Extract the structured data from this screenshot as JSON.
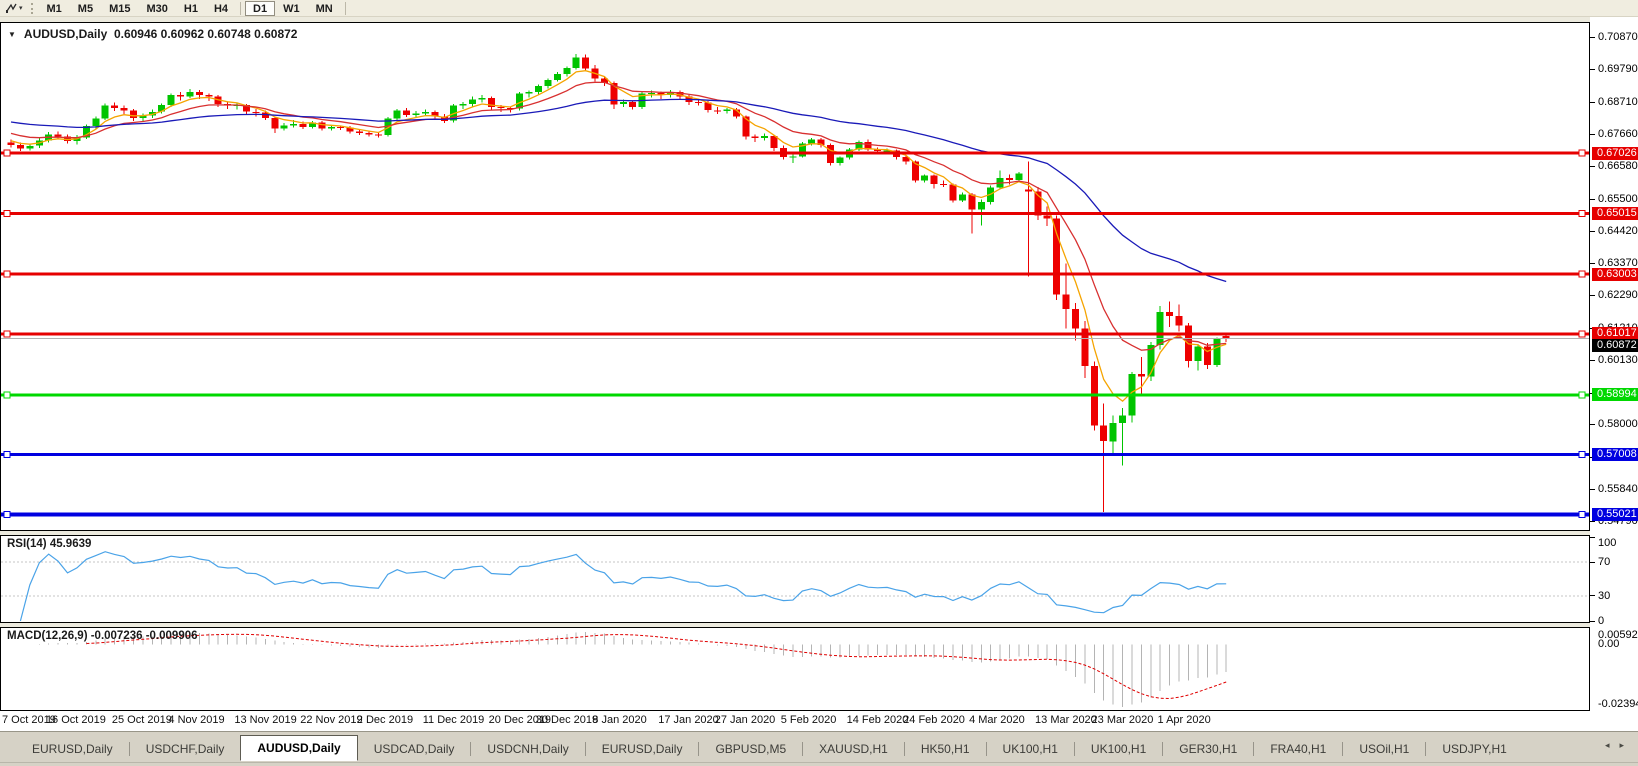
{
  "toolbar": {
    "timeframes": [
      "M1",
      "M5",
      "M15",
      "M30",
      "H1",
      "H4",
      "D1",
      "W1",
      "MN"
    ],
    "active_timeframe": "D1"
  },
  "icons": {
    "dropdown": "▼",
    "toolbar_caret": "▾",
    "tab_left": "◂",
    "tab_right": "▸"
  },
  "chart": {
    "title_symbol": "AUDUSD,Daily",
    "title_values": "0.60946 0.60962 0.60748 0.60872"
  },
  "chart_data": {
    "type": "candlestick",
    "symbol": "AUDUSD",
    "timeframe": "Daily",
    "current_bar": {
      "open": 0.60946,
      "high": 0.60962,
      "low": 0.60748,
      "close": 0.60872
    },
    "ylim": [
      0.545,
      0.7135
    ],
    "y_ticks": [
      "0.70870",
      "0.69790",
      "0.68710",
      "0.67660",
      "0.66580",
      "0.65500",
      "0.64420",
      "0.63370",
      "0.62290",
      "0.61210",
      "0.60130",
      "0.59050",
      "0.58000",
      "0.56920",
      "0.55840",
      "0.54790"
    ],
    "x_tick_labels": [
      "7 Oct 2019",
      "16 Oct 2019",
      "25 Oct 2019",
      "4 Nov 2019",
      "13 Nov 2019",
      "22 Nov 2019",
      "2 Dec 2019",
      "11 Dec 2019",
      "20 Dec 2019",
      "30 Dec 2019",
      "8 Jan 2020",
      "17 Jan 2020",
      "27 Jan 2020",
      "5 Feb 2020",
      "14 Feb 2020",
      "24 Feb 2020",
      "4 Mar 2020",
      "13 Mar 2020",
      "23 Mar 2020",
      "1 Apr 2020"
    ],
    "x_tick_indices": [
      0,
      7,
      14,
      20,
      27,
      34,
      40,
      47,
      54,
      59,
      65,
      72,
      78,
      85,
      92,
      98,
      105,
      112,
      118,
      125
    ],
    "colors": {
      "bull": "#00c400",
      "bear": "#ee0000",
      "current_line": "#b2b2b2",
      "current_label_bg": "#000000"
    },
    "levels": [
      {
        "price": 0.67026,
        "color": "#e60000",
        "width": 3
      },
      {
        "price": 0.65015,
        "color": "#e60000",
        "width": 3
      },
      {
        "price": 0.63003,
        "color": "#e60000",
        "width": 3
      },
      {
        "price": 0.61017,
        "color": "#e60000",
        "width": 3
      },
      {
        "price": 0.58994,
        "color": "#00d800",
        "width": 3
      },
      {
        "price": 0.57008,
        "color": "#0000e0",
        "width": 3
      },
      {
        "price": 0.55021,
        "color": "#0000e0",
        "width": 4
      }
    ],
    "current_price": 0.60872,
    "moving_averages": [
      {
        "period": 5,
        "color": "#f5a400",
        "seed": 0.675
      },
      {
        "period": 12,
        "color": "#d83030",
        "seed": 0.6775
      },
      {
        "period": 40,
        "color": "#1a1ab8",
        "seed": 0.681
      }
    ],
    "rsi": {
      "label": "RSI(14) 45.9639",
      "period": 14,
      "color": "#4aa3e8",
      "levels": [
        70,
        30
      ],
      "ticks": [
        "100",
        "70",
        "30",
        "0"
      ]
    },
    "macd": {
      "label": "MACD(12,26,9) -0.007236 -0.009906",
      "fast": 12,
      "slow": 26,
      "signal": 9,
      "bar_color": "#b4b4b4",
      "signal_color": "#e00000",
      "ylim": [
        -0.023944,
        0.005923
      ],
      "ticks_top": "0.005923",
      "tick_zero": "0.00",
      "tick_bottom": "-0.023944"
    },
    "ohlc": [
      [
        0.6738,
        0.6748,
        0.6722,
        0.673
      ],
      [
        0.673,
        0.6738,
        0.671,
        0.6718
      ],
      [
        0.6718,
        0.6733,
        0.6711,
        0.6727
      ],
      [
        0.6727,
        0.6752,
        0.672,
        0.6745
      ],
      [
        0.6745,
        0.6772,
        0.6738,
        0.6765
      ],
      [
        0.6765,
        0.6775,
        0.6748,
        0.6758
      ],
      [
        0.6758,
        0.6765,
        0.6735,
        0.6742
      ],
      [
        0.6742,
        0.6762,
        0.6732,
        0.6755
      ],
      [
        0.6755,
        0.6798,
        0.675,
        0.6792
      ],
      [
        0.6792,
        0.6825,
        0.6785,
        0.6818
      ],
      [
        0.6818,
        0.6868,
        0.6812,
        0.686
      ],
      [
        0.686,
        0.687,
        0.6842,
        0.6852
      ],
      [
        0.6852,
        0.686,
        0.6832,
        0.6845
      ],
      [
        0.6845,
        0.685,
        0.681,
        0.682
      ],
      [
        0.682,
        0.6835,
        0.6808,
        0.6827
      ],
      [
        0.6827,
        0.6848,
        0.682,
        0.684
      ],
      [
        0.684,
        0.6868,
        0.6835,
        0.6862
      ],
      [
        0.6862,
        0.69,
        0.6855,
        0.6895
      ],
      [
        0.6895,
        0.6905,
        0.6878,
        0.689
      ],
      [
        0.689,
        0.6915,
        0.6885,
        0.6905
      ],
      [
        0.6905,
        0.6912,
        0.6882,
        0.6895
      ],
      [
        0.6895,
        0.69,
        0.6875,
        0.689
      ],
      [
        0.689,
        0.6895,
        0.6855,
        0.6865
      ],
      [
        0.6865,
        0.6872,
        0.685,
        0.686
      ],
      [
        0.686,
        0.687,
        0.6848,
        0.6862
      ],
      [
        0.6862,
        0.6865,
        0.683,
        0.684
      ],
      [
        0.684,
        0.685,
        0.6825,
        0.6838
      ],
      [
        0.6838,
        0.6845,
        0.6812,
        0.682
      ],
      [
        0.682,
        0.6825,
        0.677,
        0.6785
      ],
      [
        0.6785,
        0.6802,
        0.6778,
        0.6795
      ],
      [
        0.6795,
        0.6812,
        0.6788,
        0.68
      ],
      [
        0.68,
        0.6808,
        0.6782,
        0.679
      ],
      [
        0.679,
        0.681,
        0.6785,
        0.6805
      ],
      [
        0.6805,
        0.681,
        0.6778,
        0.6785
      ],
      [
        0.6785,
        0.6795,
        0.6778,
        0.679
      ],
      [
        0.679,
        0.6795,
        0.678,
        0.6788
      ],
      [
        0.6788,
        0.6792,
        0.6768,
        0.6775
      ],
      [
        0.6775,
        0.6782,
        0.6762,
        0.677
      ],
      [
        0.677,
        0.6778,
        0.6758,
        0.6765
      ],
      [
        0.6765,
        0.6772,
        0.6755,
        0.6762
      ],
      [
        0.6762,
        0.6822,
        0.6758,
        0.6818
      ],
      [
        0.6818,
        0.685,
        0.6812,
        0.6845
      ],
      [
        0.6845,
        0.6852,
        0.6822,
        0.683
      ],
      [
        0.683,
        0.6842,
        0.6822,
        0.6835
      ],
      [
        0.6835,
        0.6848,
        0.6828,
        0.684
      ],
      [
        0.684,
        0.6845,
        0.6818,
        0.6825
      ],
      [
        0.6825,
        0.6832,
        0.6802,
        0.681
      ],
      [
        0.681,
        0.6865,
        0.6805,
        0.686
      ],
      [
        0.686,
        0.6872,
        0.685,
        0.6865
      ],
      [
        0.6865,
        0.689,
        0.6858,
        0.688
      ],
      [
        0.688,
        0.6895,
        0.687,
        0.6885
      ],
      [
        0.6885,
        0.689,
        0.6848,
        0.6855
      ],
      [
        0.6855,
        0.6862,
        0.684,
        0.6852
      ],
      [
        0.6852,
        0.6858,
        0.6838,
        0.685
      ],
      [
        0.685,
        0.6905,
        0.6845,
        0.69
      ],
      [
        0.69,
        0.691,
        0.6888,
        0.6905
      ],
      [
        0.6905,
        0.693,
        0.6898,
        0.6925
      ],
      [
        0.6925,
        0.695,
        0.6918,
        0.6945
      ],
      [
        0.6945,
        0.6972,
        0.694,
        0.6965
      ],
      [
        0.6965,
        0.699,
        0.6958,
        0.6985
      ],
      [
        0.6985,
        0.7032,
        0.698,
        0.7021
      ],
      [
        0.7021,
        0.703,
        0.6975,
        0.6984
      ],
      [
        0.6984,
        0.6995,
        0.694,
        0.695
      ],
      [
        0.695,
        0.6958,
        0.6925,
        0.6935
      ],
      [
        0.6935,
        0.694,
        0.685,
        0.6865
      ],
      [
        0.6865,
        0.688,
        0.6855,
        0.6872
      ],
      [
        0.6872,
        0.6878,
        0.6848,
        0.6855
      ],
      [
        0.6855,
        0.6905,
        0.685,
        0.69
      ],
      [
        0.69,
        0.691,
        0.6888,
        0.6902
      ],
      [
        0.6902,
        0.6908,
        0.6882,
        0.6895
      ],
      [
        0.6895,
        0.6912,
        0.6888,
        0.6905
      ],
      [
        0.6905,
        0.691,
        0.6882,
        0.689
      ],
      [
        0.689,
        0.6895,
        0.6862,
        0.6872
      ],
      [
        0.6872,
        0.688,
        0.686,
        0.687
      ],
      [
        0.687,
        0.6875,
        0.6838,
        0.6845
      ],
      [
        0.6845,
        0.6855,
        0.6832,
        0.6842
      ],
      [
        0.6842,
        0.6852,
        0.6835,
        0.6848
      ],
      [
        0.6848,
        0.6852,
        0.6818,
        0.6825
      ],
      [
        0.6825,
        0.6828,
        0.6748,
        0.6758
      ],
      [
        0.6758,
        0.6765,
        0.674,
        0.6752
      ],
      [
        0.6752,
        0.6768,
        0.6745,
        0.676
      ],
      [
        0.676,
        0.6762,
        0.671,
        0.672
      ],
      [
        0.672,
        0.6728,
        0.6682,
        0.669
      ],
      [
        0.669,
        0.6698,
        0.667,
        0.6692
      ],
      [
        0.6692,
        0.674,
        0.6688,
        0.6735
      ],
      [
        0.6735,
        0.6752,
        0.6728,
        0.6748
      ],
      [
        0.6748,
        0.6752,
        0.6722,
        0.673
      ],
      [
        0.673,
        0.6735,
        0.6662,
        0.667
      ],
      [
        0.667,
        0.6692,
        0.6662,
        0.6688
      ],
      [
        0.6688,
        0.672,
        0.6682,
        0.6715
      ],
      [
        0.6715,
        0.6745,
        0.671,
        0.674
      ],
      [
        0.674,
        0.6748,
        0.671,
        0.6715
      ],
      [
        0.6715,
        0.6722,
        0.67,
        0.671
      ],
      [
        0.671,
        0.6718,
        0.6702,
        0.6712
      ],
      [
        0.6712,
        0.6715,
        0.6682,
        0.669
      ],
      [
        0.669,
        0.6695,
        0.6665,
        0.6675
      ],
      [
        0.6675,
        0.6678,
        0.6605,
        0.6612
      ],
      [
        0.6612,
        0.6632,
        0.6605,
        0.6628
      ],
      [
        0.6628,
        0.6632,
        0.6585,
        0.66
      ],
      [
        0.66,
        0.6612,
        0.659,
        0.6598
      ],
      [
        0.6598,
        0.6602,
        0.6538,
        0.6545
      ],
      [
        0.6545,
        0.6572,
        0.654,
        0.6565
      ],
      [
        0.6565,
        0.657,
        0.6435,
        0.6515
      ],
      [
        0.6515,
        0.6548,
        0.6462,
        0.654
      ],
      [
        0.654,
        0.6595,
        0.6532,
        0.6588
      ],
      [
        0.6588,
        0.6645,
        0.6582,
        0.662
      ],
      [
        0.662,
        0.6632,
        0.6598,
        0.6613
      ],
      [
        0.6613,
        0.664,
        0.6605,
        0.6635
      ],
      [
        0.6582,
        0.6675,
        0.6292,
        0.6575
      ],
      [
        0.6575,
        0.659,
        0.648,
        0.6495
      ],
      [
        0.6495,
        0.6525,
        0.646,
        0.6485
      ],
      [
        0.6485,
        0.6495,
        0.6215,
        0.6232
      ],
      [
        0.6232,
        0.6335,
        0.612,
        0.6185
      ],
      [
        0.6185,
        0.6205,
        0.608,
        0.612
      ],
      [
        0.612,
        0.6145,
        0.5955,
        0.5995
      ],
      [
        0.5995,
        0.601,
        0.578,
        0.5797
      ],
      [
        0.5797,
        0.587,
        0.551,
        0.5745
      ],
      [
        0.5745,
        0.583,
        0.57,
        0.5805
      ],
      [
        0.5805,
        0.5855,
        0.5665,
        0.583
      ],
      [
        0.583,
        0.5975,
        0.5808,
        0.5968
      ],
      [
        0.5968,
        0.6025,
        0.59,
        0.596
      ],
      [
        0.596,
        0.6075,
        0.5945,
        0.6065
      ],
      [
        0.6065,
        0.6195,
        0.605,
        0.6175
      ],
      [
        0.6175,
        0.621,
        0.6125,
        0.6162
      ],
      [
        0.6162,
        0.62,
        0.611,
        0.613
      ],
      [
        0.613,
        0.6138,
        0.599,
        0.6012
      ],
      [
        0.6012,
        0.6068,
        0.598,
        0.606
      ],
      [
        0.606,
        0.6072,
        0.5985,
        0.5998
      ],
      [
        0.5998,
        0.609,
        0.5992,
        0.6085
      ],
      [
        0.60946,
        0.60962,
        0.60748,
        0.60872
      ]
    ]
  },
  "tabs": {
    "items": [
      "EURUSD,Daily",
      "USDCHF,Daily",
      "AUDUSD,Daily",
      "USDCAD,Daily",
      "USDCNH,Daily",
      "EURUSD,Daily",
      "GBPUSD,M5",
      "XAUUSD,H1",
      "HK50,H1",
      "UK100,H1",
      "UK100,H1",
      "GER30,H1",
      "FRA40,H1",
      "USOil,H1",
      "USDJPY,H1"
    ],
    "active_index": 2
  }
}
